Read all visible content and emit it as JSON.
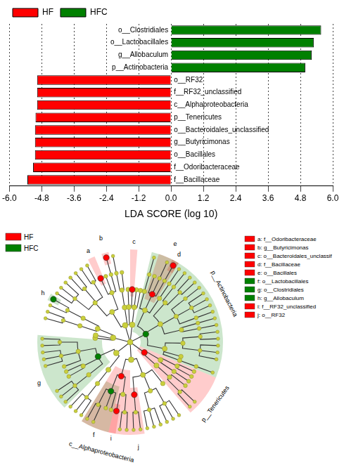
{
  "chart_data": {
    "type": "bar",
    "orientation": "horizontal",
    "categories": [
      "o__Clostridiales",
      "o__Lactobacillales",
      "g__Allobaculum",
      "p__Actinobacteria",
      "o__RF32",
      "f__RF32_unclassified",
      "c__Alphaproteobacteria",
      "p__Tenericutes",
      "o__Bacteroidales_unclassified",
      "g__Butyricimonas",
      "o__Bacillales",
      "f__Odoribacteraceae",
      "f__Bacillaceae"
    ],
    "series": [
      {
        "name": "HF",
        "color": "#ff0000",
        "values": [
          null,
          null,
          null,
          null,
          -4.97,
          -4.97,
          -4.97,
          -5.03,
          -5.05,
          -5.05,
          -5.05,
          -5.12,
          -5.33
        ]
      },
      {
        "name": "HFC",
        "color": "#008000",
        "values": [
          5.57,
          5.3,
          5.22,
          4.98,
          null,
          null,
          null,
          null,
          null,
          null,
          null,
          null,
          null
        ]
      }
    ],
    "x_label": "LDA SCORE (log 10)",
    "xlim": [
      -6,
      6
    ],
    "xticks": [
      {
        "value": -6,
        "label": "-6.0"
      },
      -4.8,
      -3.6,
      -2.4,
      -1.2,
      {
        "value": 0,
        "label": "0.0"
      },
      1.2,
      2.4,
      3.6,
      4.8,
      {
        "value": 6,
        "label": "6.0"
      }
    ],
    "grid": true,
    "legend": "top-left"
  },
  "cladogram": {
    "legend": [
      {
        "name": "HF",
        "color": "#ff0000"
      },
      {
        "name": "HFC",
        "color": "#008000"
      }
    ],
    "key": [
      {
        "text": "a: f__Odoribacteraceae",
        "group": "HF"
      },
      {
        "text": "b: g__Butyricimonas",
        "group": "HF"
      },
      {
        "text": "c: o__Bacteroidales_unclassif",
        "group": "HF"
      },
      {
        "text": "d: f__Bacillaceae",
        "group": "HF"
      },
      {
        "text": "e: o__Bacillales",
        "group": "HF"
      },
      {
        "text": "f: o__Lactobacillales",
        "group": "HFC"
      },
      {
        "text": "g: o__Clostridiales",
        "group": "HFC"
      },
      {
        "text": "h: g__Allobaculum",
        "group": "HFC"
      },
      {
        "text": "i: f__RF32_unclassified",
        "group": "HF"
      },
      {
        "text": "j: o__RF32",
        "group": "HF"
      }
    ],
    "clades": [
      {
        "label": "a",
        "group": "HF"
      },
      {
        "label": "b",
        "group": "HF"
      },
      {
        "label": "c",
        "group": "HF"
      },
      {
        "label": "d",
        "group": "HF"
      },
      {
        "label": "e",
        "group": "HF"
      },
      {
        "label": "f",
        "group": "HFC"
      },
      {
        "label": "g",
        "group": "HFC"
      },
      {
        "label": "h",
        "group": "HFC"
      },
      {
        "label": "i",
        "group": "HF"
      },
      {
        "label": "j",
        "group": "HF"
      },
      {
        "label": "p__Actinobacteria",
        "group": "HFC"
      },
      {
        "label": "p__Tenericutes",
        "group": "HF"
      },
      {
        "label": "c__Alphaproteobacteria",
        "group": "HF"
      }
    ]
  }
}
